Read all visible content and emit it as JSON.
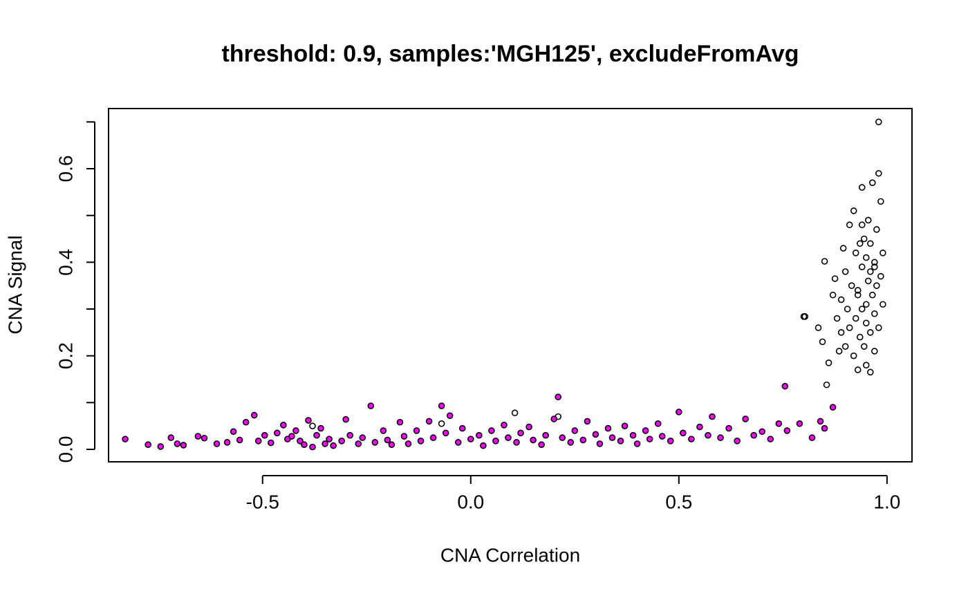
{
  "chart_data": {
    "type": "scatter",
    "title": "threshold: 0.9, samples:'MGH125', excludeFromAvg",
    "x_label": "CNA Correlation",
    "y_label": "CNA Signal",
    "xlim": [
      -0.87,
      1.06
    ],
    "ylim": [
      -0.0266,
      0.7286
    ],
    "xticks": [
      -0.5,
      {
        "value": 0,
        "label": "0.0"
      },
      0.5,
      {
        "value": 1,
        "label": "1.0"
      }
    ],
    "yticks": [
      {
        "value": 0,
        "label": "0.0"
      },
      0.2,
      0.4,
      0.6
    ],
    "yminor_ticks": [
      0.1,
      0.3,
      0.5,
      0.7
    ],
    "series": [
      {
        "color": "#000000",
        "filled": false,
        "x": [
          0.8,
          0.803,
          0.835,
          0.845,
          0.85,
          0.855,
          0.86,
          0.87,
          0.875,
          0.88,
          0.885,
          0.89,
          0.89,
          0.895,
          0.9,
          0.9,
          0.905,
          0.91,
          0.91,
          0.915,
          0.92,
          0.92,
          0.925,
          0.925,
          0.93,
          0.93,
          0.935,
          0.935,
          0.94,
          0.94,
          0.94,
          0.945,
          0.945,
          0.95,
          0.95,
          0.95,
          0.955,
          0.955,
          0.96,
          0.96,
          0.96,
          0.965,
          0.965,
          0.97,
          0.97,
          0.97,
          0.975,
          0.975,
          0.98,
          0.98,
          0.98,
          0.985,
          0.985,
          0.99,
          0.99,
          0.96,
          0.95,
          0.94,
          0.97,
          0.93,
          0.106,
          -0.07,
          -0.38,
          0.21
        ],
        "values": [
          0.284,
          0.284,
          0.26,
          0.23,
          0.402,
          0.138,
          0.185,
          0.33,
          0.365,
          0.28,
          0.21,
          0.25,
          0.32,
          0.43,
          0.38,
          0.22,
          0.3,
          0.48,
          0.26,
          0.35,
          0.51,
          0.2,
          0.42,
          0.28,
          0.17,
          0.34,
          0.44,
          0.24,
          0.39,
          0.3,
          0.56,
          0.45,
          0.22,
          0.41,
          0.31,
          0.27,
          0.49,
          0.36,
          0.38,
          0.25,
          0.44,
          0.33,
          0.57,
          0.21,
          0.4,
          0.29,
          0.35,
          0.47,
          0.7,
          0.59,
          0.26,
          0.53,
          0.37,
          0.42,
          0.31,
          0.165,
          0.18,
          0.48,
          0.39,
          0.33,
          0.078,
          0.055,
          0.05,
          0.07
        ]
      },
      {
        "color": "#ff00ff",
        "filled": true,
        "x": [
          -0.83,
          -0.775,
          -0.745,
          -0.72,
          -0.705,
          -0.69,
          -0.655,
          -0.64,
          -0.61,
          -0.585,
          -0.57,
          -0.555,
          -0.54,
          -0.52,
          -0.51,
          -0.495,
          -0.48,
          -0.465,
          -0.45,
          -0.44,
          -0.43,
          -0.42,
          -0.41,
          -0.4,
          -0.39,
          -0.38,
          -0.37,
          -0.36,
          -0.35,
          -0.34,
          -0.33,
          -0.31,
          -0.3,
          -0.29,
          -0.27,
          -0.26,
          -0.24,
          -0.23,
          -0.21,
          -0.2,
          -0.19,
          -0.17,
          -0.16,
          -0.15,
          -0.13,
          -0.12,
          -0.1,
          -0.09,
          -0.07,
          -0.06,
          -0.05,
          -0.03,
          -0.02,
          0.0,
          0.02,
          0.03,
          0.05,
          0.06,
          0.08,
          0.09,
          0.11,
          0.12,
          0.14,
          0.15,
          0.17,
          0.18,
          0.2,
          0.21,
          0.22,
          0.24,
          0.25,
          0.27,
          0.28,
          0.3,
          0.31,
          0.33,
          0.34,
          0.36,
          0.37,
          0.39,
          0.4,
          0.42,
          0.43,
          0.45,
          0.46,
          0.48,
          0.5,
          0.51,
          0.53,
          0.55,
          0.57,
          0.58,
          0.6,
          0.62,
          0.64,
          0.66,
          0.68,
          0.7,
          0.72,
          0.74,
          0.755,
          0.76,
          0.79,
          0.82,
          0.84,
          0.85,
          0.87
        ],
        "values": [
          0.022,
          0.01,
          0.006,
          0.025,
          0.012,
          0.009,
          0.028,
          0.024,
          0.012,
          0.015,
          0.038,
          0.02,
          0.058,
          0.073,
          0.018,
          0.03,
          0.014,
          0.035,
          0.052,
          0.022,
          0.028,
          0.04,
          0.018,
          0.01,
          0.062,
          0.005,
          0.03,
          0.045,
          0.012,
          0.022,
          0.008,
          0.018,
          0.064,
          0.03,
          0.012,
          0.025,
          0.093,
          0.015,
          0.04,
          0.02,
          0.01,
          0.058,
          0.028,
          0.012,
          0.04,
          0.018,
          0.06,
          0.025,
          0.093,
          0.035,
          0.072,
          0.015,
          0.045,
          0.022,
          0.03,
          0.008,
          0.04,
          0.018,
          0.052,
          0.025,
          0.015,
          0.035,
          0.048,
          0.02,
          0.01,
          0.03,
          0.065,
          0.112,
          0.025,
          0.015,
          0.04,
          0.02,
          0.06,
          0.032,
          0.012,
          0.045,
          0.025,
          0.018,
          0.05,
          0.03,
          0.012,
          0.04,
          0.022,
          0.055,
          0.028,
          0.018,
          0.08,
          0.035,
          0.022,
          0.048,
          0.03,
          0.07,
          0.025,
          0.045,
          0.018,
          0.065,
          0.03,
          0.038,
          0.022,
          0.055,
          0.135,
          0.04,
          0.055,
          0.025,
          0.06,
          0.045,
          0.09
        ]
      }
    ]
  }
}
